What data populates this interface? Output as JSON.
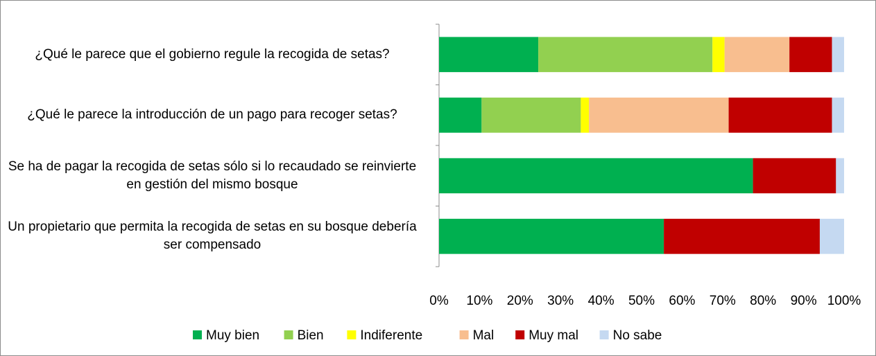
{
  "chart_data": {
    "type": "stacked-bar-horizontal",
    "categories": [
      "¿Qué le parece que el gobierno regule la recogida de setas?",
      "¿Qué le parece la introducción de un pago para recoger setas?",
      "Se ha de pagar la recogida de setas sólo si lo recaudado se reinvierte en gestión del mismo bosque",
      "Un propietario que permita la recogida de setas en su bosque debería ser compensado"
    ],
    "series": [
      {
        "name": "Muy bien",
        "color": "#00b050",
        "values": [
          24.5,
          10.5,
          77.5,
          55.5
        ]
      },
      {
        "name": "Bien",
        "color": "#92d050",
        "values": [
          43,
          24.5,
          0,
          0
        ]
      },
      {
        "name": "Indiferente",
        "color": "#ffff00",
        "values": [
          3,
          2,
          0,
          0
        ]
      },
      {
        "name": "Mal",
        "color": "#f8be8f",
        "values": [
          16,
          34.5,
          0,
          0
        ]
      },
      {
        "name": "Muy mal",
        "color": "#c00000",
        "values": [
          10.5,
          25.5,
          20.5,
          38.5
        ]
      },
      {
        "name": "No sabe",
        "color": "#c5d9f1",
        "values": [
          3,
          3,
          2,
          6
        ]
      }
    ],
    "xlim": [
      0,
      100
    ],
    "xticks": [
      {
        "value": 0,
        "label": "0%"
      },
      {
        "value": 10,
        "label": "10%"
      },
      {
        "value": 20,
        "label": "20%"
      },
      {
        "value": 30,
        "label": "30%"
      },
      {
        "value": 40,
        "label": "40%"
      },
      {
        "value": 50,
        "label": "50%"
      },
      {
        "value": 60,
        "label": "60%"
      },
      {
        "value": 70,
        "label": "70%"
      },
      {
        "value": 80,
        "label": "80%"
      },
      {
        "value": 90,
        "label": "90%"
      },
      {
        "value": 100,
        "label": "100%"
      }
    ],
    "legend": "bottom"
  }
}
